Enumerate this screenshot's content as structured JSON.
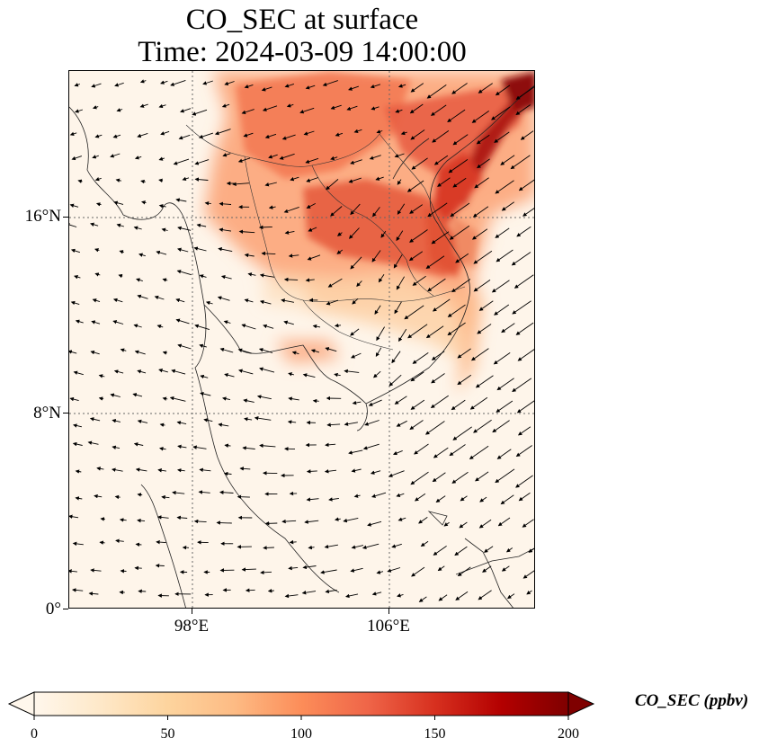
{
  "title": {
    "line1": "CO_SEC at surface",
    "line2": "Time: 2024-03-09 14:00:00"
  },
  "map": {
    "extent_lon": [
      93,
      112
    ],
    "extent_lat": [
      0,
      22
    ],
    "gridlines": "dotted",
    "colormap": "OrRd",
    "feature": "coastlines and country borders with wind vectors",
    "lat_ticks": [
      {
        "value": 16,
        "label": "16°N"
      },
      {
        "value": 8,
        "label": "8°N"
      },
      {
        "value": 0,
        "label": "0°"
      }
    ],
    "lon_ticks": [
      {
        "value": 98,
        "label": "98°E"
      },
      {
        "value": 106,
        "label": "106°E"
      }
    ]
  },
  "colorbar": {
    "title": "CO_SEC (ppbv)",
    "min": 0,
    "max": 200,
    "extend": "both",
    "ticks": [
      {
        "value": 0,
        "label": "0"
      },
      {
        "value": 50,
        "label": "50"
      },
      {
        "value": 100,
        "label": "100"
      },
      {
        "value": 150,
        "label": "150"
      },
      {
        "value": 200,
        "label": "200"
      }
    ],
    "colors": [
      "#fff7ec",
      "#fee8c8",
      "#fdd49e",
      "#fdbb84",
      "#fc8d59",
      "#ef6548",
      "#d7301f",
      "#b30000",
      "#7f0000"
    ]
  }
}
